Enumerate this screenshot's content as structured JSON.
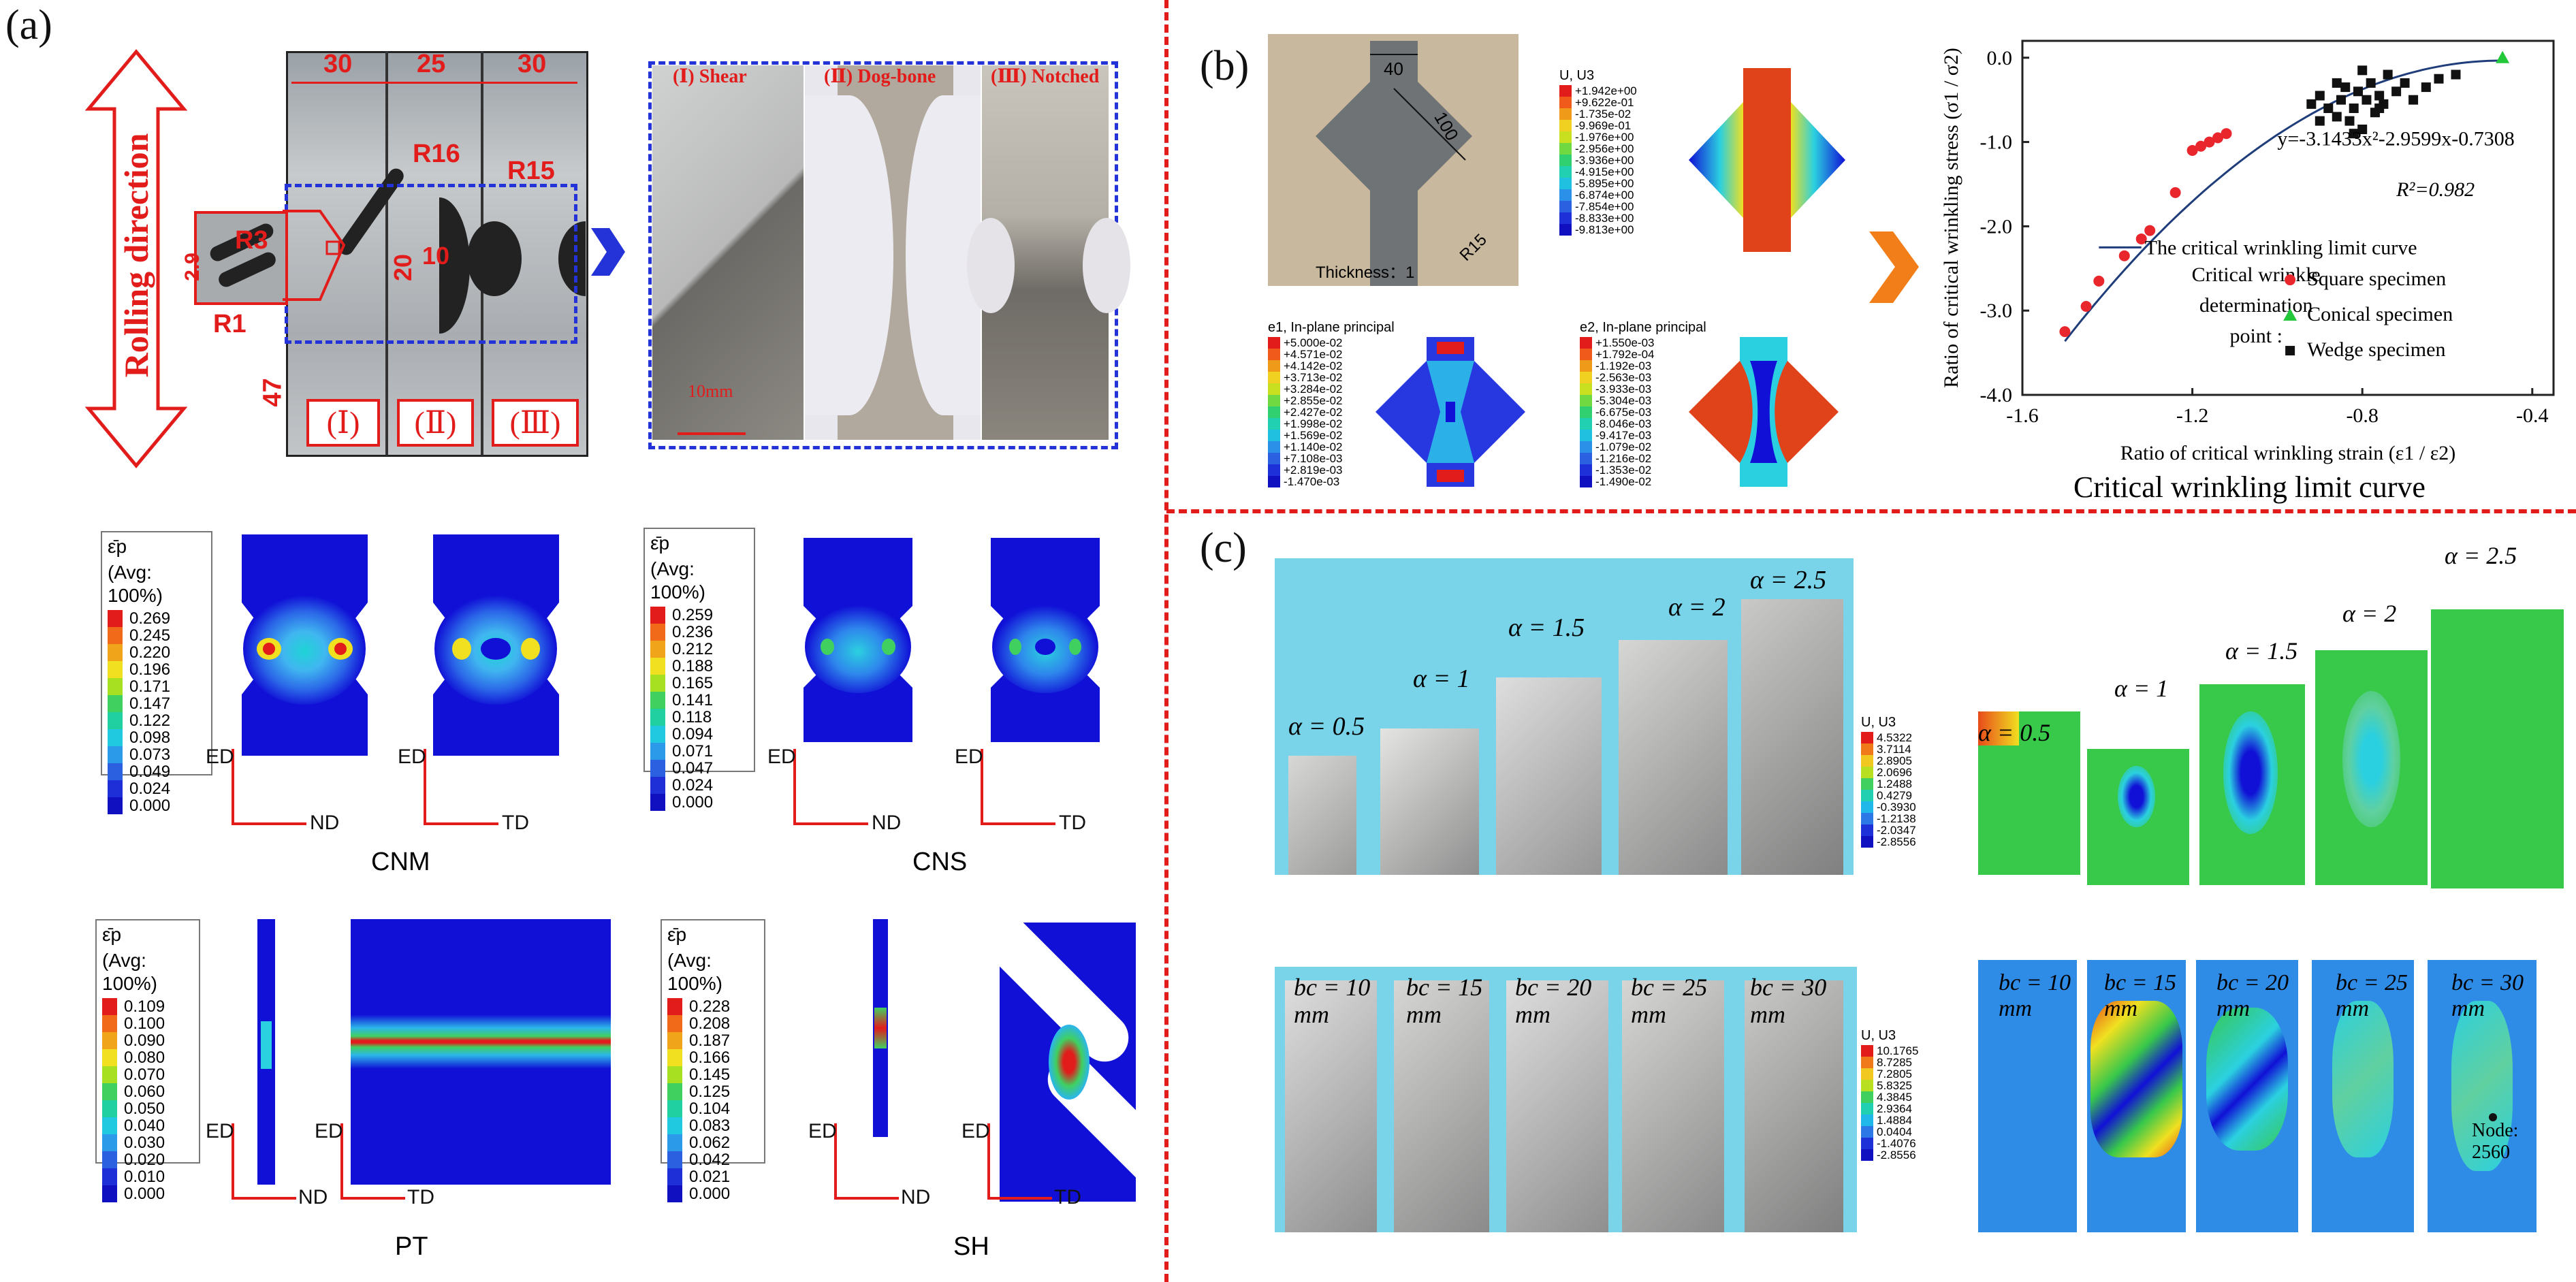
{
  "panels": {
    "a": "(a)",
    "b": "(b)",
    "c": "(c)"
  },
  "a_top": {
    "rolling_direction": "Rolling direction",
    "widths": [
      "30",
      "25",
      "30"
    ],
    "radii": {
      "r16": "R16",
      "r15": "R15",
      "r3": "R3",
      "r1": "R1"
    },
    "dims": {
      "d29": "2.9",
      "d20": "20",
      "d10": "10",
      "d47": "47"
    },
    "specimen_ids": [
      "(Ⅰ)",
      "(Ⅱ)",
      "(Ⅲ)"
    ],
    "photo_labels": [
      "(Ⅰ) Shear",
      "(Ⅱ) Dog-bone",
      "(Ⅲ) Notched"
    ],
    "scale_bar": "10mm"
  },
  "a_fem": {
    "symbol": "ε̄p",
    "avg": "(Avg: 100%)",
    "cnm_legend": [
      "0.269",
      "0.245",
      "0.220",
      "0.196",
      "0.171",
      "0.147",
      "0.122",
      "0.098",
      "0.073",
      "0.049",
      "0.024",
      "0.000"
    ],
    "cns_legend": [
      "0.259",
      "0.236",
      "0.212",
      "0.188",
      "0.165",
      "0.141",
      "0.118",
      "0.094",
      "0.071",
      "0.047",
      "0.024",
      "0.000"
    ],
    "pt_legend": [
      "0.109",
      "0.100",
      "0.090",
      "0.080",
      "0.070",
      "0.060",
      "0.050",
      "0.040",
      "0.030",
      "0.020",
      "0.010",
      "0.000"
    ],
    "sh_legend": [
      "0.228",
      "0.208",
      "0.187",
      "0.166",
      "0.145",
      "0.125",
      "0.104",
      "0.083",
      "0.062",
      "0.042",
      "0.021",
      "0.000"
    ],
    "axes": {
      "ed": "ED",
      "nd": "ND",
      "td": "TD"
    },
    "captions": {
      "cnm": "CNM",
      "cns": "CNS",
      "pt": "PT",
      "sh": "SH"
    }
  },
  "b": {
    "photo": {
      "dim40": "40",
      "dim100": "100",
      "r15": "R15",
      "thickness": "Thickness：1"
    },
    "u_title": "U, U3",
    "u_legend": [
      "+1.942e+00",
      "+9.622e-01",
      "-1.735e-02",
      "-9.969e-01",
      "-1.976e+00",
      "-2.956e+00",
      "-3.936e+00",
      "-4.915e+00",
      "-5.895e+00",
      "-6.874e+00",
      "-7.854e+00",
      "-8.833e+00",
      "-9.813e+00"
    ],
    "e1_title": "e1, In-plane principal",
    "e1_legend": [
      "+5.000e-02",
      "+4.571e-02",
      "+4.142e-02",
      "+3.713e-02",
      "+3.284e-02",
      "+2.855e-02",
      "+2.427e-02",
      "+1.998e-02",
      "+1.569e-02",
      "+1.140e-02",
      "+7.108e-03",
      "+2.819e-03",
      "-1.470e-03"
    ],
    "e2_title": "e2, In-plane principal",
    "e2_legend": [
      "+1.550e-03",
      "+1.792e-04",
      "-1.192e-03",
      "-2.563e-03",
      "-3.933e-03",
      "-5.304e-03",
      "-6.675e-03",
      "-8.046e-03",
      "-9.417e-03",
      "-1.079e-02",
      "-1.216e-02",
      "-1.353e-02",
      "-1.490e-02"
    ],
    "caption": "Critical wrinkling limit curve"
  },
  "chart_data": {
    "type": "scatter",
    "title": "",
    "xlabel": "Ratio of critical wrinkling strain (ε1 / ε2)",
    "ylabel": "Ratio of critical wrinkling stress (σ1 / σ2)",
    "xlim": [
      -1.6,
      -0.35
    ],
    "ylim": [
      -4.0,
      0.2
    ],
    "xticks": [
      "-1.6",
      "-1.2",
      "-0.8",
      "-0.4"
    ],
    "yticks": [
      "0.0",
      "-1.0",
      "-2.0",
      "-3.0",
      "-4.0"
    ],
    "fit_equation": "y=-3.1433x²-2.9599x-0.7308",
    "r2": "R²=0.982",
    "curve_label": "The critical wrinkling limit curve",
    "legend_title": "Critical wrinkle determination point :",
    "fit": {
      "a": -3.1433,
      "b": -2.9599,
      "c": -0.7308,
      "x_range": [
        -1.5,
        -0.47
      ]
    },
    "series": [
      {
        "name": "Square specimen",
        "color": "#e8262b",
        "marker": "circle",
        "x": [
          -1.5,
          -1.45,
          -1.42,
          -1.36,
          -1.32,
          -1.3,
          -1.24,
          -1.2,
          -1.18,
          -1.16,
          -1.14,
          -1.12
        ],
        "y": [
          -3.25,
          -2.95,
          -2.65,
          -2.35,
          -2.15,
          -2.05,
          -1.6,
          -1.1,
          -1.05,
          -1.0,
          -0.95,
          -0.9
        ]
      },
      {
        "name": "Conical specimen",
        "color": "#22c83a",
        "marker": "triangle",
        "x": [
          -0.47
        ],
        "y": [
          0.0
        ]
      },
      {
        "name": "Wedge specimen",
        "color": "#111111",
        "marker": "square",
        "x": [
          -0.92,
          -0.9,
          -0.88,
          -0.86,
          -0.85,
          -0.84,
          -0.83,
          -0.82,
          -0.81,
          -0.8,
          -0.79,
          -0.78,
          -0.77,
          -0.76,
          -0.75,
          -0.74,
          -0.72,
          -0.7,
          -0.68,
          -0.65,
          -0.62,
          -0.58,
          -0.82,
          -0.86,
          -0.9,
          -0.76,
          -0.8
        ],
        "y": [
          -0.55,
          -0.45,
          -0.6,
          -0.7,
          -0.5,
          -0.35,
          -0.75,
          -0.6,
          -0.4,
          -0.85,
          -0.5,
          -0.3,
          -0.65,
          -0.45,
          -0.55,
          -0.2,
          -0.4,
          -0.3,
          -0.5,
          -0.35,
          -0.25,
          -0.2,
          -0.9,
          -0.3,
          -0.75,
          -0.6,
          -0.15
        ]
      }
    ]
  },
  "c": {
    "alpha_labels": [
      "α = 0.5",
      "α = 1",
      "α = 1.5",
      "α = 2",
      "α = 2.5"
    ],
    "bc_labels": [
      "bc = 10 mm",
      "bc = 15 mm",
      "bc = 20 mm",
      "bc = 25 mm",
      "bc = 30 mm"
    ],
    "u_title": "U, U3",
    "u_legend_top": [
      "4.5322",
      "3.7114",
      "2.8905",
      "2.0696",
      "1.2488",
      "0.4279",
      "-0.3930",
      "-1.2138",
      "-2.0347",
      "-2.8556"
    ],
    "u_legend_bottom": [
      "10.1765",
      "8.7285",
      "7.2805",
      "5.8325",
      "4.3845",
      "2.9364",
      "1.4884",
      "0.0404",
      "-1.4076",
      "-2.8556"
    ],
    "node_label": "Node: 2560"
  }
}
